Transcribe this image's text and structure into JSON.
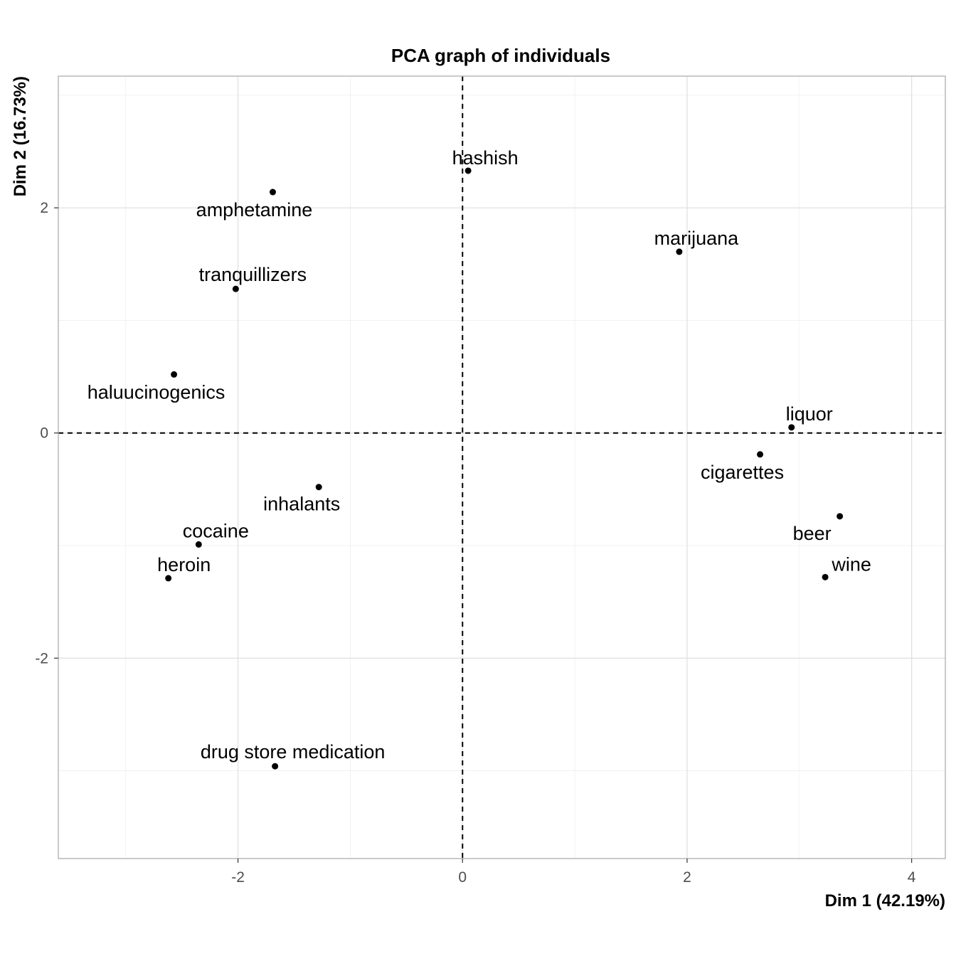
{
  "chart_data": {
    "type": "scatter",
    "title": "PCA graph of individuals",
    "xlabel": "Dim 1 (42.19%)",
    "ylabel": "Dim 2 (16.73%)",
    "xlim": [
      -3.6,
      4.3
    ],
    "ylim": [
      -3.78,
      3.17
    ],
    "x_ticks": [
      -2,
      0,
      2,
      4
    ],
    "y_ticks": [
      -2,
      0,
      2
    ],
    "grid": true,
    "reference_lines": {
      "x": 0,
      "y": 0,
      "style": "dashed"
    },
    "points": [
      {
        "label": "hashish",
        "x": 0.05,
        "y": 2.33
      },
      {
        "label": "amphetamine",
        "x": -1.69,
        "y": 2.14
      },
      {
        "label": "marijuana",
        "x": 1.93,
        "y": 1.61
      },
      {
        "label": "tranquillizers",
        "x": -2.02,
        "y": 1.28
      },
      {
        "label": "haluucinogenics",
        "x": -2.57,
        "y": 0.52
      },
      {
        "label": "liquor",
        "x": 2.93,
        "y": 0.05
      },
      {
        "label": "cigarettes",
        "x": 2.65,
        "y": -0.19
      },
      {
        "label": "inhalants",
        "x": -1.28,
        "y": -0.48
      },
      {
        "label": "beer",
        "x": 3.36,
        "y": -0.74
      },
      {
        "label": "cocaine",
        "x": -2.35,
        "y": -0.99
      },
      {
        "label": "heroin",
        "x": -2.62,
        "y": -1.29
      },
      {
        "label": "wine",
        "x": 3.23,
        "y": -1.28
      },
      {
        "label": "drug store medication",
        "x": -1.67,
        "y": -2.96
      }
    ]
  }
}
